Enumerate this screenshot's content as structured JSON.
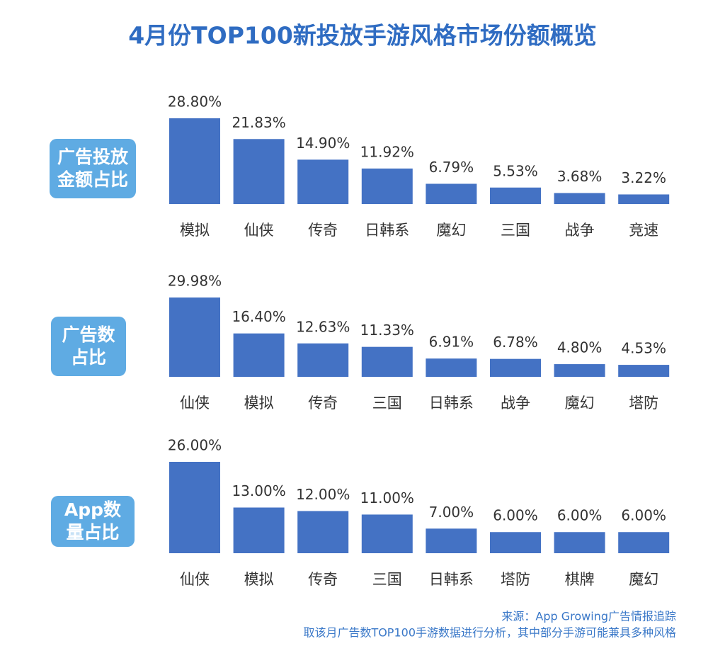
{
  "title": "4月份TOP100新投放手游风格市场份额概览",
  "chart_data": [
    {
      "type": "bar",
      "title": "广告投放金额占比",
      "color": "#4472c4",
      "categories": [
        "模拟",
        "仙侠",
        "传奇",
        "日韩系",
        "魔幻",
        "三国",
        "战争",
        "竞速"
      ],
      "values": [
        28.8,
        21.83,
        14.9,
        11.92,
        6.79,
        5.53,
        3.68,
        3.22
      ],
      "value_labels": [
        "28.80%",
        "21.83%",
        "14.90%",
        "11.92%",
        "6.79%",
        "5.53%",
        "3.68%",
        "3.22%"
      ]
    },
    {
      "type": "bar",
      "title": "广告数占比",
      "color": "#4472c4",
      "categories": [
        "仙侠",
        "模拟",
        "传奇",
        "三国",
        "日韩系",
        "战争",
        "魔幻",
        "塔防"
      ],
      "values": [
        29.98,
        16.4,
        12.63,
        11.33,
        6.91,
        6.78,
        4.8,
        4.53
      ],
      "value_labels": [
        "29.98%",
        "16.40%",
        "12.63%",
        "11.33%",
        "6.91%",
        "6.78%",
        "4.80%",
        "4.53%"
      ]
    },
    {
      "type": "bar",
      "title": "App数量占比",
      "color": "#4472c4",
      "categories": [
        "仙侠",
        "模拟",
        "传奇",
        "三国",
        "日韩系",
        "塔防",
        "棋牌",
        "魔幻"
      ],
      "values": [
        26,
        13,
        12,
        11,
        7,
        6,
        6,
        6
      ],
      "value_labels": [
        "26.00%",
        "13.00%",
        "12.00%",
        "11.00%",
        "7.00%",
        "6.00%",
        "6.00%",
        "6.00%"
      ]
    }
  ],
  "source": [
    "来源：App Growing广告情报追踪",
    "取该月广告数TOP100手游数据进行分析，其中部分手游可能兼具多种风格"
  ]
}
